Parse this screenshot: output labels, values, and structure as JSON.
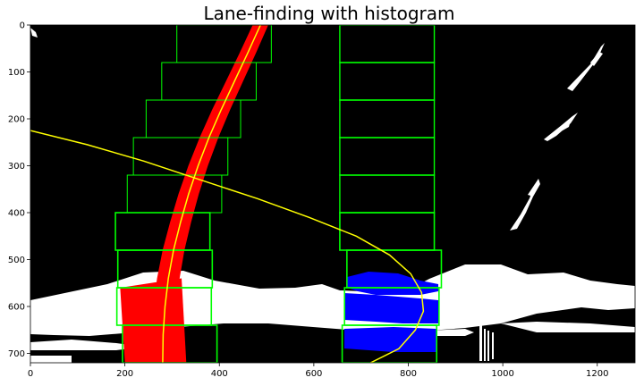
{
  "chart_data": {
    "type": "image-plot",
    "title": "Lane-finding with histogram",
    "xlabel": "",
    "ylabel": "",
    "xlim": [
      0,
      1280
    ],
    "ylim": [
      720,
      0
    ],
    "xticks": [
      0,
      200,
      400,
      600,
      800,
      1000,
      1200
    ],
    "yticks": [
      0,
      100,
      200,
      300,
      400,
      500,
      600,
      700
    ],
    "colors": {
      "background": "#000000",
      "left_lane_pixels": "#ff0000",
      "right_lane_pixels": "#0000ff",
      "noise_pixels": "#ffffff",
      "windows": "#00ff00",
      "fit_curve": "#ffff00"
    },
    "left_windows": [
      {
        "x0": 310,
        "x1": 510,
        "y0": 0,
        "y1": 80
      },
      {
        "x0": 278,
        "x1": 478,
        "y0": 80,
        "y1": 160
      },
      {
        "x0": 245,
        "x1": 445,
        "y0": 160,
        "y1": 240
      },
      {
        "x0": 218,
        "x1": 418,
        "y0": 240,
        "y1": 320
      },
      {
        "x0": 205,
        "x1": 405,
        "y0": 320,
        "y1": 400
      },
      {
        "x0": 180,
        "x1": 380,
        "y0": 400,
        "y1": 480
      },
      {
        "x0": 185,
        "x1": 385,
        "y0": 480,
        "y1": 560
      },
      {
        "x0": 183,
        "x1": 383,
        "y0": 560,
        "y1": 640
      },
      {
        "x0": 195,
        "x1": 395,
        "y0": 640,
        "y1": 720
      }
    ],
    "right_windows": [
      {
        "x0": 655,
        "x1": 855,
        "y0": 0,
        "y1": 80
      },
      {
        "x0": 655,
        "x1": 855,
        "y0": 80,
        "y1": 160
      },
      {
        "x0": 655,
        "x1": 855,
        "y0": 160,
        "y1": 240
      },
      {
        "x0": 655,
        "x1": 855,
        "y0": 240,
        "y1": 320
      },
      {
        "x0": 655,
        "x1": 855,
        "y0": 320,
        "y1": 400
      },
      {
        "x0": 655,
        "x1": 855,
        "y0": 400,
        "y1": 480
      },
      {
        "x0": 670,
        "x1": 870,
        "y0": 480,
        "y1": 560
      },
      {
        "x0": 665,
        "x1": 865,
        "y0": 560,
        "y1": 640
      },
      {
        "x0": 660,
        "x1": 860,
        "y0": 640,
        "y1": 720
      }
    ],
    "left_fit_curve": [
      [
        487,
        0
      ],
      [
        460,
        60
      ],
      [
        432,
        120
      ],
      [
        404,
        180
      ],
      [
        378,
        240
      ],
      [
        355,
        300
      ],
      [
        335,
        360
      ],
      [
        318,
        420
      ],
      [
        303,
        480
      ],
      [
        292,
        540
      ],
      [
        285,
        600
      ],
      [
        281,
        660
      ],
      [
        280,
        720
      ]
    ],
    "right_fit_curve": [
      [
        0,
        225
      ],
      [
        120,
        255
      ],
      [
        240,
        290
      ],
      [
        360,
        330
      ],
      [
        480,
        370
      ],
      [
        590,
        410
      ],
      [
        690,
        450
      ],
      [
        760,
        490
      ],
      [
        805,
        530
      ],
      [
        828,
        570
      ],
      [
        832,
        610
      ],
      [
        815,
        650
      ],
      [
        780,
        690
      ],
      [
        720,
        720
      ]
    ]
  }
}
